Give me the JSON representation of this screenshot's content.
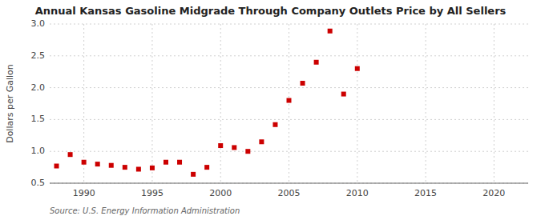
{
  "chart_data": {
    "type": "scatter",
    "title": "Annual Kansas Gasoline Midgrade Through Company Outlets Price by All Sellers",
    "y_label": "Dollars per Gallon",
    "source": "Source: U.S. Energy Information Administration",
    "x": [
      1988,
      1989,
      1990,
      1991,
      1992,
      1993,
      1994,
      1995,
      1996,
      1997,
      1998,
      1999,
      2000,
      2001,
      2002,
      2003,
      2004,
      2005,
      2006,
      2007,
      2008,
      2009,
      2010
    ],
    "values": [
      0.77,
      0.95,
      0.83,
      0.8,
      0.78,
      0.75,
      0.72,
      0.74,
      0.83,
      0.83,
      0.64,
      0.75,
      1.09,
      1.06,
      1.0,
      1.15,
      1.42,
      1.8,
      2.07,
      2.4,
      2.89,
      1.9,
      2.3
    ],
    "color": "#cc0000",
    "marker": "square",
    "xlim": [
      1987.5,
      2022.5
    ],
    "ylim": [
      0.5,
      3.0
    ],
    "xticks": [
      1990,
      1995,
      2000,
      2005,
      2010,
      2015,
      2020
    ],
    "yticks": [
      0.5,
      {
        "value": 1.0,
        "label": "1.0"
      },
      1.5,
      {
        "value": 2.0,
        "label": "2.0"
      },
      2.5,
      {
        "value": 3.0,
        "label": "3.0"
      }
    ],
    "grid": true
  }
}
